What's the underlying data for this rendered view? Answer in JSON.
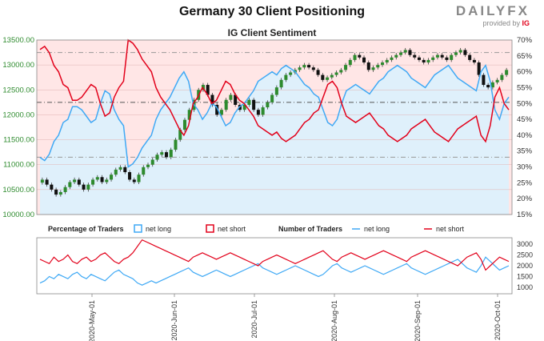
{
  "header": {
    "title": "Germany 30 Client Positioning",
    "brand": "DAILYFX",
    "brand_sub": "provided by",
    "brand_ig": "IG"
  },
  "chart_data": [
    {
      "type": "candlestick+line",
      "title": "IG Client Sentiment",
      "left_axis": {
        "ticks": [
          "13500.00",
          "13000.00",
          "12500.00",
          "12000.00",
          "11500.00",
          "11000.00",
          "10500.00",
          "10000.00"
        ],
        "range": [
          10000,
          13500
        ]
      },
      "right_axis": {
        "ticks": [
          "70%",
          "65%",
          "60%",
          "55%",
          "50%",
          "45%",
          "40%",
          "35%",
          "30%",
          "25%",
          "20%",
          "15%"
        ],
        "range": [
          15,
          70
        ]
      },
      "price_close_approx": [
        10700,
        10600,
        10500,
        10400,
        10450,
        10550,
        10650,
        10700,
        10600,
        10500,
        10600,
        10700,
        10750,
        10650,
        10700,
        10800,
        10900,
        10950,
        10850,
        10700,
        10650,
        10800,
        10950,
        11000,
        11100,
        11200,
        11250,
        11150,
        11300,
        11500,
        11700,
        11900,
        12100,
        12300,
        12500,
        12600,
        12400,
        12200,
        12000,
        12100,
        12300,
        12400,
        12200,
        12100,
        12200,
        12300,
        12100,
        12000,
        12150,
        12250,
        12400,
        12550,
        12700,
        12800,
        12850,
        12900,
        12950,
        13000,
        12950,
        12900,
        12800,
        12700,
        12750,
        12800,
        12850,
        12900,
        13000,
        13100,
        13200,
        13150,
        13050,
        12900,
        12950,
        13000,
        13050,
        13100,
        13150,
        13200,
        13250,
        13300,
        13200,
        13150,
        13100,
        13050,
        13100,
        13150,
        13200,
        13150,
        13100,
        13200,
        13250,
        13300,
        13200,
        13100,
        13050,
        12800,
        12600,
        12550,
        12650,
        12700,
        12800,
        12900
      ],
      "pct_net_long_approx": [
        33,
        32,
        34,
        38,
        40,
        44,
        45,
        49,
        49,
        48,
        46,
        44,
        45,
        50,
        54,
        53,
        48,
        45,
        43,
        30,
        31,
        33,
        36,
        38,
        40,
        45,
        48,
        50,
        52,
        55,
        58,
        60,
        57,
        50,
        48,
        45,
        47,
        50,
        49,
        46,
        43,
        44,
        47,
        49,
        50,
        52,
        54,
        57,
        58,
        59,
        60,
        59,
        61,
        62,
        61,
        60,
        58,
        56,
        55,
        53,
        52,
        48,
        44,
        43,
        45,
        50,
        54,
        55,
        56,
        55,
        54,
        53,
        55,
        57,
        58,
        60,
        61,
        62,
        61,
        60,
        58,
        57,
        56,
        55,
        57,
        59,
        60,
        61,
        62,
        60,
        58,
        57,
        56,
        55,
        54,
        60,
        62,
        57,
        48,
        45,
        50,
        52
      ],
      "pct_net_short_approx": [
        67,
        68,
        66,
        62,
        60,
        56,
        55,
        51,
        51,
        52,
        54,
        56,
        55,
        50,
        46,
        47,
        52,
        55,
        57,
        70,
        69,
        67,
        64,
        62,
        60,
        55,
        52,
        50,
        48,
        45,
        42,
        40,
        43,
        50,
        52,
        55,
        53,
        50,
        51,
        54,
        57,
        56,
        53,
        51,
        50,
        48,
        46,
        43,
        42,
        41,
        40,
        41,
        39,
        38,
        39,
        40,
        42,
        44,
        45,
        47,
        48,
        52,
        56,
        57,
        55,
        50,
        46,
        45,
        44,
        45,
        46,
        47,
        45,
        43,
        42,
        40,
        39,
        38,
        39,
        40,
        42,
        43,
        44,
        45,
        43,
        41,
        40,
        39,
        38,
        40,
        42,
        43,
        44,
        45,
        46,
        40,
        38,
        43,
        52,
        55,
        50,
        48
      ]
    },
    {
      "type": "line",
      "title": "Number of Traders",
      "right_axis": {
        "ticks": [
          "3000",
          "2500",
          "2000",
          "1500",
          "1000"
        ],
        "range": [
          700,
          3300
        ]
      },
      "x_tick_labels": [
        "2020-May-01",
        "2020-Jun-01",
        "2020-Jul-01",
        "2020-Aug-01",
        "2020-Sep-01",
        "2020-Oct-01"
      ],
      "series": [
        {
          "name": "net long",
          "color": "#3fa9f5",
          "values": [
            1200,
            1300,
            1500,
            1400,
            1600,
            1500,
            1400,
            1600,
            1700,
            1500,
            1400,
            1600,
            1500,
            1400,
            1300,
            1500,
            1700,
            1800,
            1600,
            1500,
            1400,
            1200,
            1100,
            1200,
            1300,
            1200,
            1300,
            1400,
            1500,
            1600,
            1700,
            1800,
            1900,
            1700,
            1600,
            1500,
            1600,
            1700,
            1800,
            1700,
            1600,
            1500,
            1600,
            1700,
            1800,
            1900,
            2000,
            2100,
            1900,
            1800,
            1700,
            1600,
            1700,
            1800,
            1900,
            2000,
            1900,
            1800,
            1700,
            1600,
            1500,
            1600,
            1800,
            2000,
            2100,
            1900,
            1800,
            1700,
            1800,
            1900,
            2000,
            1900,
            1800,
            1700,
            1600,
            1700,
            1800,
            1900,
            2000,
            2100,
            1900,
            1800,
            1700,
            1600,
            1700,
            1800,
            1900,
            2000,
            2100,
            2200,
            2300,
            2100,
            1900,
            1800,
            1700,
            2000,
            2400,
            2200,
            2000,
            1800,
            1900,
            2000
          ]
        },
        {
          "name": "net short",
          "color": "#e2001a",
          "values": [
            2300,
            2200,
            2100,
            2400,
            2200,
            2300,
            2500,
            2200,
            2100,
            2300,
            2400,
            2200,
            2300,
            2500,
            2600,
            2400,
            2200,
            2100,
            2300,
            2400,
            2600,
            2900,
            3200,
            3100,
            3000,
            2900,
            2800,
            2700,
            2600,
            2500,
            2400,
            2300,
            2200,
            2400,
            2500,
            2600,
            2500,
            2400,
            2300,
            2400,
            2500,
            2600,
            2500,
            2400,
            2300,
            2200,
            2100,
            2000,
            2200,
            2300,
            2400,
            2500,
            2400,
            2300,
            2200,
            2100,
            2200,
            2300,
            2400,
            2500,
            2600,
            2700,
            2500,
            2300,
            2200,
            2400,
            2500,
            2600,
            2500,
            2400,
            2300,
            2400,
            2500,
            2600,
            2700,
            2600,
            2500,
            2400,
            2300,
            2200,
            2400,
            2500,
            2600,
            2700,
            2600,
            2500,
            2400,
            2300,
            2200,
            2100,
            2000,
            2200,
            2400,
            2500,
            2600,
            2300,
            1800,
            2000,
            2200,
            2400,
            2300,
            2200
          ]
        }
      ]
    }
  ],
  "legend": {
    "pct_label": "Percentage of Traders",
    "num_label": "Number of Traders",
    "net_long": "net long",
    "net_short": "net short",
    "long_color": "#3fa9f5",
    "short_color": "#e2001a"
  }
}
